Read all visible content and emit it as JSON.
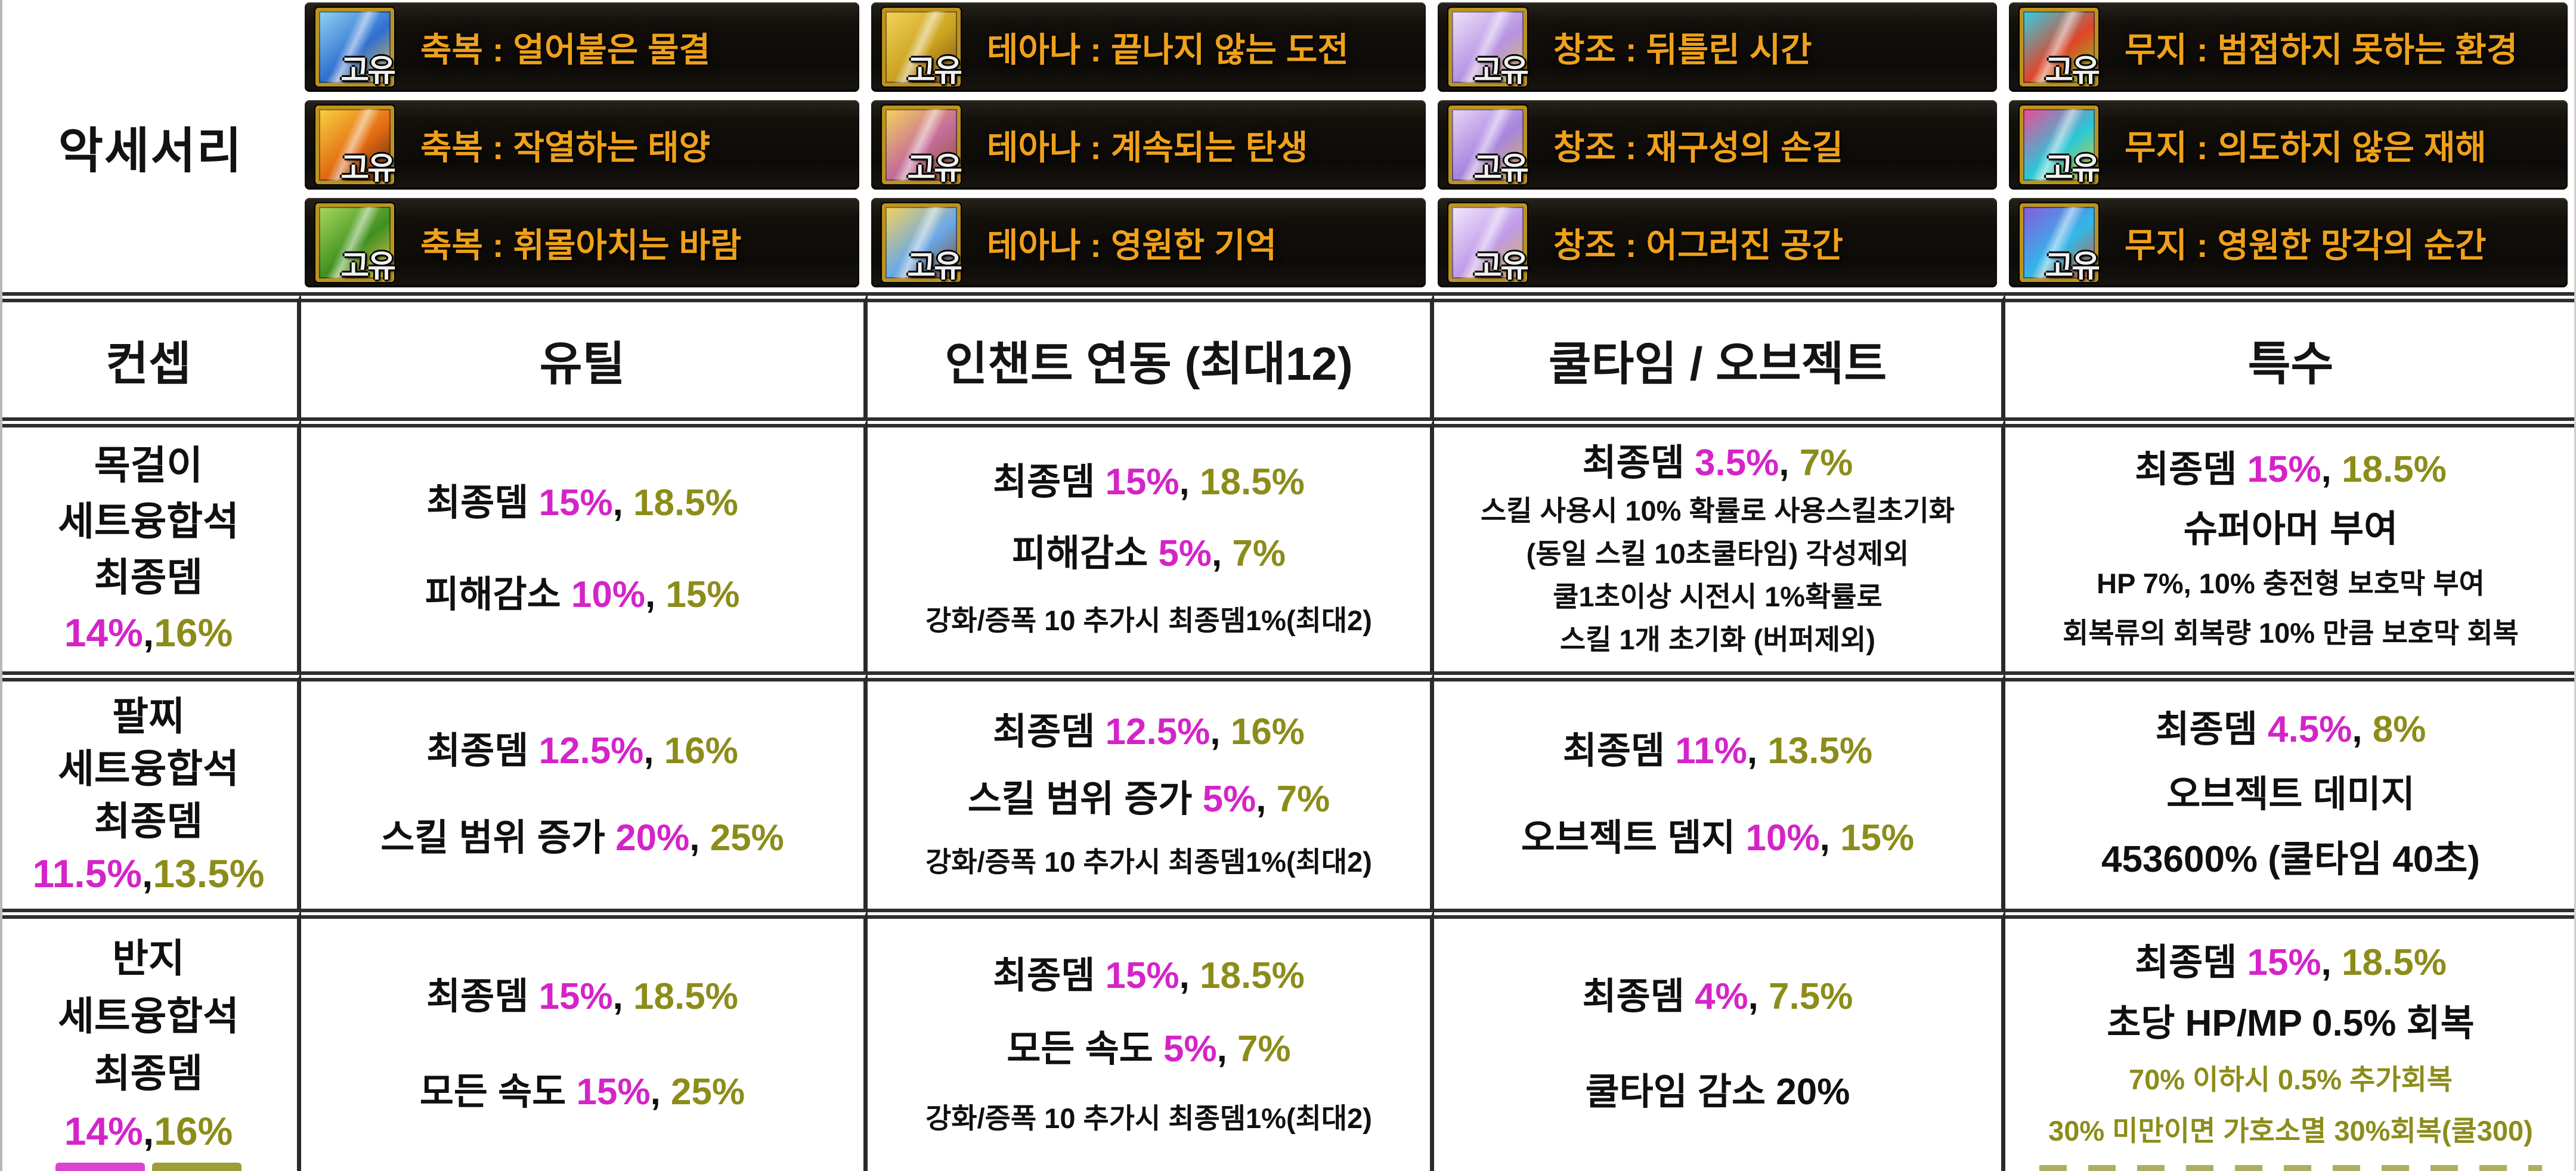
{
  "colors": {
    "magenta": "#d424c8",
    "olive": "#8c8c1a",
    "gold": "#efa11b",
    "panel_black": "#14100c",
    "table_line": "#2a2a2a"
  },
  "accessory_section": {
    "row_label": "악세서리",
    "unique_badge": "고유",
    "columns": [
      {
        "items": [
          {
            "name": "축복 : 얼어붙은 물결",
            "icon": "frozen-wave-icon",
            "art": [
              "#8fd4f4",
              "#2f6fd0",
              "#e9c253"
            ]
          },
          {
            "name": "축복 : 작열하는 태양",
            "icon": "blazing-sun-icon",
            "art": [
              "#f7d23e",
              "#e26a12",
              "#4a2410"
            ]
          },
          {
            "name": "축복 : 휘몰아치는 바람",
            "icon": "sweeping-wind-icon",
            "art": [
              "#a8d85a",
              "#3f9020",
              "#ecc653"
            ]
          }
        ]
      },
      {
        "items": [
          {
            "name": "테아나 : 끝나지 않는 도전",
            "icon": "teana-challenge-icon",
            "art": [
              "#f4d35a",
              "#caa21e",
              "#7a4a20"
            ]
          },
          {
            "name": "테아나 : 계속되는 탄생",
            "icon": "teana-birth-icon",
            "art": [
              "#f4d35a",
              "#c46a9a",
              "#8a5a20"
            ]
          },
          {
            "name": "테아나 : 영원한 기억",
            "icon": "teana-memory-icon",
            "art": [
              "#f4d35a",
              "#6aa8e8",
              "#7a4a28"
            ]
          }
        ]
      },
      {
        "items": [
          {
            "name": "창조 : 뒤틀린 시간",
            "icon": "creation-twisted-time-icon",
            "art": [
              "#efe3fa",
              "#b793e3",
              "#d9bd55"
            ]
          },
          {
            "name": "창조 : 재구성의 손길",
            "icon": "creation-hand-icon",
            "art": [
              "#e8d5f8",
              "#a883dd",
              "#dcc05a"
            ]
          },
          {
            "name": "창조 : 어그러진 공간",
            "icon": "creation-warped-space-icon",
            "art": [
              "#f2e8fc",
              "#c09ae8",
              "#d5b850"
            ]
          }
        ]
      },
      {
        "items": [
          {
            "name": "무지 : 범접하지 못하는 환경",
            "icon": "muji-environment-icon",
            "art": [
              "#30d0e8",
              "#e04428",
              "#86d81e"
            ]
          },
          {
            "name": "무지 : 의도하지 않은 재해",
            "icon": "muji-disaster-icon",
            "art": [
              "#f04898",
              "#28c8d8",
              "#e8d020"
            ]
          },
          {
            "name": "무지 : 영원한 망각의 순간",
            "icon": "muji-oblivion-icon",
            "art": [
              "#8a58e0",
              "#30b8e8",
              "#e05828"
            ]
          }
        ]
      }
    ]
  },
  "table": {
    "header": [
      "컨셉",
      "유틸",
      "인챈트 연동 (최대12)",
      "쿨타임 / 오브젝트",
      "특수"
    ],
    "rows": [
      {
        "key": "necklace",
        "cells": {
          "concept": [
            {
              "s": "lg",
              "seg": [
                [
                  "k",
                  "목걸이"
                ]
              ]
            },
            {
              "s": "lg",
              "seg": [
                [
                  "k",
                  "세트융합석"
                ]
              ]
            },
            {
              "s": "lg",
              "seg": [
                [
                  "k",
                  "최종뎀"
                ]
              ]
            },
            {
              "s": "lg",
              "seg": [
                [
                  "m",
                  "14%"
                ],
                [
                  "k",
                  ","
                ],
                [
                  "o",
                  "16%"
                ]
              ]
            }
          ],
          "util": [
            {
              "s": "lg",
              "seg": [
                [
                  "k",
                  "최종뎀 "
                ],
                [
                  "m",
                  "15%"
                ],
                [
                  "k",
                  ", "
                ],
                [
                  "o",
                  "18.5%"
                ]
              ]
            },
            {
              "s": "lg",
              "seg": [
                [
                  "k",
                  "피해감소 "
                ],
                [
                  "m",
                  "10%"
                ],
                [
                  "k",
                  ", "
                ],
                [
                  "o",
                  "15%"
                ]
              ]
            }
          ],
          "enchant": [
            {
              "s": "lg",
              "seg": [
                [
                  "k",
                  "최종뎀 "
                ],
                [
                  "m",
                  "15%"
                ],
                [
                  "k",
                  ", "
                ],
                [
                  "o",
                  "18.5%"
                ]
              ]
            },
            {
              "s": "lg",
              "seg": [
                [
                  "k",
                  "피해감소 "
                ],
                [
                  "m",
                  "5%"
                ],
                [
                  "k",
                  ", "
                ],
                [
                  "o",
                  "7%"
                ]
              ]
            },
            {
              "s": "sm",
              "seg": [
                [
                  "k",
                  "강화/증폭 10 추가시 최종뎀1%(최대2)"
                ]
              ]
            }
          ],
          "cooldown": [
            {
              "s": "lg",
              "seg": [
                [
                  "k",
                  "최종뎀 "
                ],
                [
                  "m",
                  "3.5%"
                ],
                [
                  "k",
                  ", "
                ],
                [
                  "o",
                  "7%"
                ]
              ]
            },
            {
              "s": "sm",
              "seg": [
                [
                  "k",
                  "스킬 사용시 10% 확률로 사용스킬초기화"
                ]
              ]
            },
            {
              "s": "sm",
              "seg": [
                [
                  "k",
                  "(동일 스킬 10초쿨타임) 각성제외"
                ]
              ]
            },
            {
              "s": "sm",
              "seg": [
                [
                  "k",
                  "쿨1초이상 시전시 1%확률로"
                ]
              ]
            },
            {
              "s": "sm",
              "seg": [
                [
                  "k",
                  "스킬 1개 초기화 (버퍼제외)"
                ]
              ]
            }
          ],
          "special": [
            {
              "s": "lg",
              "seg": [
                [
                  "k",
                  "최종뎀 "
                ],
                [
                  "m",
                  "15%"
                ],
                [
                  "k",
                  ", "
                ],
                [
                  "o",
                  "18.5%"
                ]
              ]
            },
            {
              "s": "lg",
              "seg": [
                [
                  "k",
                  "슈퍼아머 부여"
                ]
              ]
            },
            {
              "s": "sm",
              "seg": [
                [
                  "k",
                  "HP 7%, 10% 충전형 보호막 부여"
                ]
              ]
            },
            {
              "s": "sm",
              "seg": [
                [
                  "k",
                  "회복류의 회복량 10% 만큼 보호막 회복"
                ]
              ]
            }
          ]
        }
      },
      {
        "key": "bracelet",
        "cells": {
          "concept": [
            {
              "s": "lg",
              "seg": [
                [
                  "k",
                  "팔찌"
                ]
              ]
            },
            {
              "s": "lg",
              "seg": [
                [
                  "k",
                  "세트융합석"
                ]
              ]
            },
            {
              "s": "lg",
              "seg": [
                [
                  "k",
                  "최종뎀"
                ]
              ]
            },
            {
              "s": "lg",
              "seg": [
                [
                  "m",
                  "11.5%"
                ],
                [
                  "k",
                  ","
                ],
                [
                  "o",
                  "13.5%"
                ]
              ]
            }
          ],
          "util": [
            {
              "s": "lg",
              "seg": [
                [
                  "k",
                  "최종뎀 "
                ],
                [
                  "m",
                  "12.5%"
                ],
                [
                  "k",
                  ", "
                ],
                [
                  "o",
                  "16%"
                ]
              ]
            },
            {
              "s": "lg",
              "seg": [
                [
                  "k",
                  "스킬 범위 증가 "
                ],
                [
                  "m",
                  "20%"
                ],
                [
                  "k",
                  ", "
                ],
                [
                  "o",
                  "25%"
                ]
              ]
            }
          ],
          "enchant": [
            {
              "s": "lg",
              "seg": [
                [
                  "k",
                  "최종뎀 "
                ],
                [
                  "m",
                  "12.5%"
                ],
                [
                  "k",
                  ", "
                ],
                [
                  "o",
                  "16%"
                ]
              ]
            },
            {
              "s": "lg",
              "seg": [
                [
                  "k",
                  "스킬 범위 증가 "
                ],
                [
                  "m",
                  "5%"
                ],
                [
                  "k",
                  ", "
                ],
                [
                  "o",
                  "7%"
                ]
              ]
            },
            {
              "s": "sm",
              "seg": [
                [
                  "k",
                  "강화/증폭 10 추가시 최종뎀1%(최대2)"
                ]
              ]
            }
          ],
          "cooldown": [
            {
              "s": "lg",
              "seg": [
                [
                  "k",
                  "최종뎀 "
                ],
                [
                  "m",
                  "11%"
                ],
                [
                  "k",
                  ", "
                ],
                [
                  "o",
                  "13.5%"
                ]
              ]
            },
            {
              "s": "lg",
              "seg": [
                [
                  "k",
                  "오브젝트 뎀지 "
                ],
                [
                  "m",
                  "10%"
                ],
                [
                  "k",
                  ", "
                ],
                [
                  "o",
                  "15%"
                ]
              ]
            }
          ],
          "special": [
            {
              "s": "lg",
              "seg": [
                [
                  "k",
                  "최종뎀 "
                ],
                [
                  "m",
                  "4.5%"
                ],
                [
                  "k",
                  ", "
                ],
                [
                  "o",
                  "8%"
                ]
              ]
            },
            {
              "s": "lg",
              "seg": [
                [
                  "k",
                  "오브젝트 데미지"
                ]
              ]
            },
            {
              "s": "lg",
              "seg": [
                [
                  "k",
                  "453600% (쿨타임 40초)"
                ]
              ]
            }
          ]
        }
      },
      {
        "key": "ring",
        "cells": {
          "concept": [
            {
              "s": "lg",
              "seg": [
                [
                  "k",
                  "반지"
                ]
              ]
            },
            {
              "s": "lg",
              "seg": [
                [
                  "k",
                  "세트융합석"
                ]
              ]
            },
            {
              "s": "lg",
              "seg": [
                [
                  "k",
                  "최종뎀"
                ]
              ]
            },
            {
              "s": "lg",
              "seg": [
                [
                  "m",
                  "14%"
                ],
                [
                  "k",
                  ","
                ],
                [
                  "o",
                  "16%"
                ]
              ]
            }
          ],
          "util": [
            {
              "s": "lg",
              "seg": [
                [
                  "k",
                  "최종뎀 "
                ],
                [
                  "m",
                  "15%"
                ],
                [
                  "k",
                  ", "
                ],
                [
                  "o",
                  "18.5%"
                ]
              ]
            },
            {
              "s": "lg",
              "seg": [
                [
                  "k",
                  "모든 속도 "
                ],
                [
                  "m",
                  "15%"
                ],
                [
                  "k",
                  ", "
                ],
                [
                  "o",
                  "25%"
                ]
              ]
            }
          ],
          "enchant": [
            {
              "s": "lg",
              "seg": [
                [
                  "k",
                  "최종뎀 "
                ],
                [
                  "m",
                  "15%"
                ],
                [
                  "k",
                  ", "
                ],
                [
                  "o",
                  "18.5%"
                ]
              ]
            },
            {
              "s": "lg",
              "seg": [
                [
                  "k",
                  "모든 속도 "
                ],
                [
                  "m",
                  "5%"
                ],
                [
                  "k",
                  ", "
                ],
                [
                  "o",
                  "7%"
                ]
              ]
            },
            {
              "s": "sm",
              "seg": [
                [
                  "k",
                  "강화/증폭 10 추가시 최종뎀1%(최대2)"
                ]
              ]
            }
          ],
          "cooldown": [
            {
              "s": "lg",
              "seg": [
                [
                  "k",
                  "최종뎀 "
                ],
                [
                  "m",
                  "4%"
                ],
                [
                  "k",
                  ", "
                ],
                [
                  "o",
                  "7.5%"
                ]
              ]
            },
            {
              "s": "lg",
              "seg": [
                [
                  "k",
                  "쿨타임 감소 20%"
                ]
              ]
            }
          ],
          "special": [
            {
              "s": "lg",
              "seg": [
                [
                  "k",
                  "최종뎀 "
                ],
                [
                  "m",
                  "15%"
                ],
                [
                  "k",
                  ", "
                ],
                [
                  "o",
                  "18.5%"
                ]
              ]
            },
            {
              "s": "lg",
              "seg": [
                [
                  "k",
                  "초당 HP/MP 0.5% 회복"
                ]
              ]
            },
            {
              "s": "sm",
              "seg": [
                [
                  "o",
                  "70% 이하시 0.5% 추가회복"
                ]
              ]
            },
            {
              "s": "sm",
              "seg": [
                [
                  "o",
                  "30% 미만이면 가호소멸 30%회복(쿨300)"
                ]
              ]
            }
          ]
        }
      }
    ]
  }
}
